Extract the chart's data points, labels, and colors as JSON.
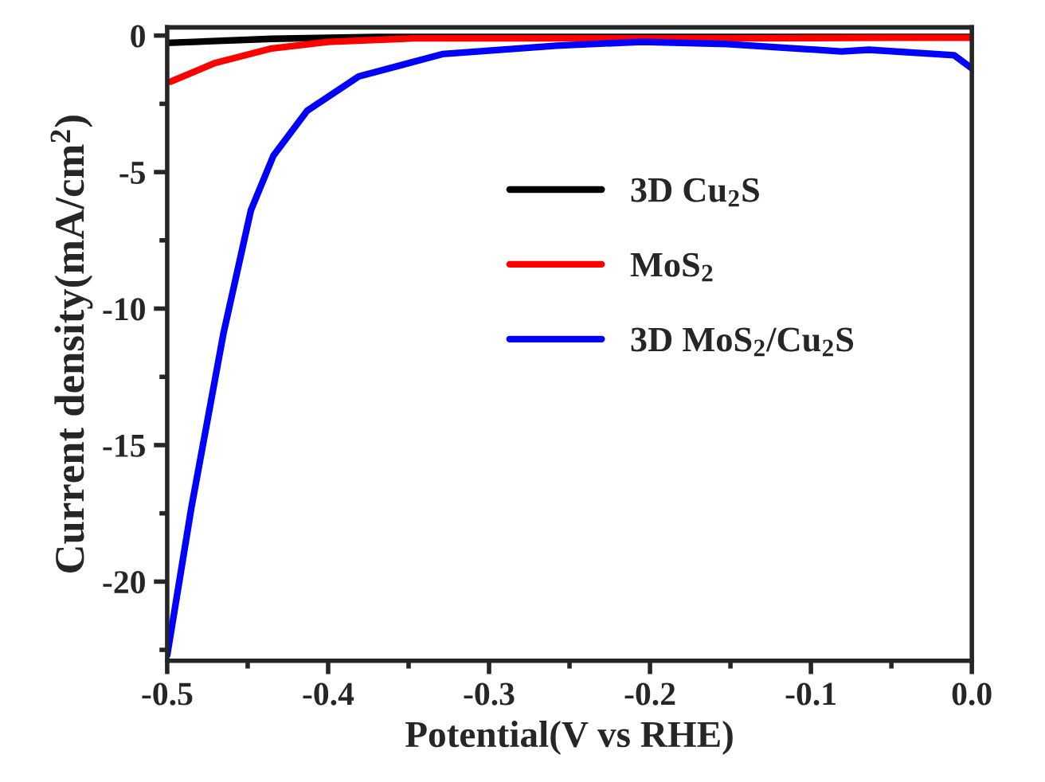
{
  "chart_data": {
    "type": "line",
    "xlabel": "Potential(V vs RHE)",
    "ylabel": "Current density(mA/cm$^{2}$)",
    "xlim": [
      -0.5,
      0.0
    ],
    "xticks": [
      {
        "value": -0.5,
        "label": "-0.5"
      },
      {
        "value": -0.4,
        "label": "-0.4"
      },
      {
        "value": -0.3,
        "label": "-0.3"
      },
      {
        "value": -0.2,
        "label": "-0.2"
      },
      {
        "value": -0.1,
        "label": "-0.1"
      },
      {
        "value": 0.0,
        "label": "0.0"
      }
    ],
    "ylim": [
      -22.9,
      0.3
    ],
    "yticks": [
      {
        "value": -20,
        "label": "-20"
      },
      {
        "value": -15,
        "label": "-15"
      },
      {
        "value": -10,
        "label": "-10"
      },
      {
        "value": -5,
        "label": "-5"
      },
      {
        "value": 0,
        "label": "0"
      }
    ],
    "legend": "center",
    "grid": false,
    "line_style": "solid",
    "marker": "none",
    "series": [
      {
        "name": "3D Cu$_{2}$S",
        "color": "#000000",
        "x": [
          -0.5,
          -0.435,
          -0.37,
          -0.3,
          -0.2,
          -0.1,
          0.0
        ],
        "values": [
          -0.27,
          -0.12,
          -0.05,
          -0.05,
          null,
          null,
          -0.05
        ]
      },
      {
        "name": "MoS$_{2}$",
        "color": "#ff0000",
        "x": [
          -0.498,
          -0.47,
          -0.435,
          -0.4,
          -0.346,
          -0.25,
          -0.15,
          -0.05,
          0.0
        ],
        "values": [
          -1.69,
          -1.0,
          -0.47,
          -0.23,
          -0.1,
          -0.1,
          -0.1,
          -0.08,
          -0.08
        ]
      },
      {
        "name": "3D MoS$_{2}$/Cu$_{2}$S",
        "color": "#0000ff",
        "x": [
          -0.5,
          -0.485,
          -0.465,
          -0.448,
          -0.434,
          -0.413,
          -0.381,
          -0.329,
          -0.258,
          -0.205,
          -0.152,
          -0.081,
          -0.064,
          -0.011,
          0.0
        ],
        "values": [
          -22.7,
          -17.3,
          -10.9,
          -6.4,
          -4.4,
          -2.75,
          -1.5,
          -0.68,
          -0.37,
          -0.23,
          -0.31,
          -0.58,
          -0.52,
          -0.72,
          -1.2
        ]
      }
    ]
  }
}
